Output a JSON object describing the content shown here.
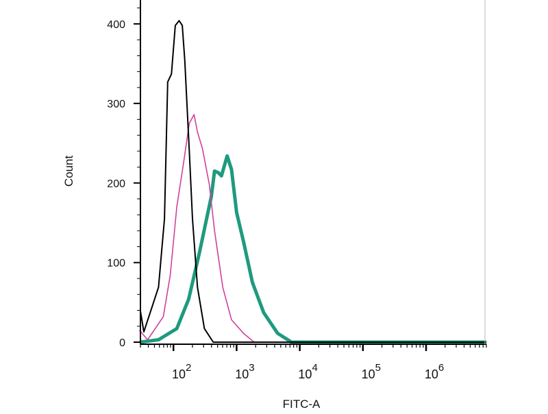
{
  "chart_data": {
    "type": "line",
    "title": "",
    "xlabel": "FITC-A",
    "ylabel": "Count",
    "xscale": "log",
    "xlim": [
      30,
      9000000
    ],
    "ylim": [
      0,
      430
    ],
    "grid": false,
    "legend": "none",
    "y_ticks": [
      0,
      100,
      200,
      300,
      400
    ],
    "y_tick_labels": [
      "0",
      "100",
      "200",
      "300",
      "400"
    ],
    "x_ticks": [
      100,
      1000,
      10000,
      100000,
      1000000
    ],
    "x_tick_labels": [
      {
        "base": "10",
        "exp": "2"
      },
      {
        "base": "10",
        "exp": "3"
      },
      {
        "base": "10",
        "exp": "4"
      },
      {
        "base": "10",
        "exp": "5"
      },
      {
        "base": "10",
        "exp": "6"
      }
    ],
    "series": [
      {
        "color": "#000000",
        "x": [
          30,
          34,
          58,
          72,
          81,
          93,
          107,
          123,
          138,
          151,
          178,
          200,
          240,
          309,
          427,
          9000000
        ],
        "y": [
          39,
          13,
          69,
          155,
          327,
          337,
          398,
          404,
          398,
          355,
          241,
          155,
          69,
          17,
          0,
          0
        ]
      },
      {
        "color": "#d0409a",
        "x": [
          29,
          39,
          69,
          89,
          113,
          145,
          178,
          212,
          240,
          288,
          370,
          447,
          603,
          832,
          1290,
          1900,
          9000000
        ],
        "y": [
          15,
          3,
          32,
          84,
          170,
          226,
          275,
          286,
          264,
          243,
          198,
          140,
          69,
          28,
          11,
          0,
          0
        ]
      },
      {
        "color": "#1f9a7e",
        "x": [
          30,
          58,
          113,
          174,
          257,
          398,
          447,
          513,
          575,
          708,
          832,
          1000,
          1290,
          1780,
          2690,
          4470,
          7410,
          9000000
        ],
        "y": [
          0,
          3,
          17,
          54,
          112,
          183,
          215,
          213,
          209,
          234,
          217,
          163,
          126,
          75,
          37,
          11,
          0,
          0
        ]
      }
    ]
  }
}
